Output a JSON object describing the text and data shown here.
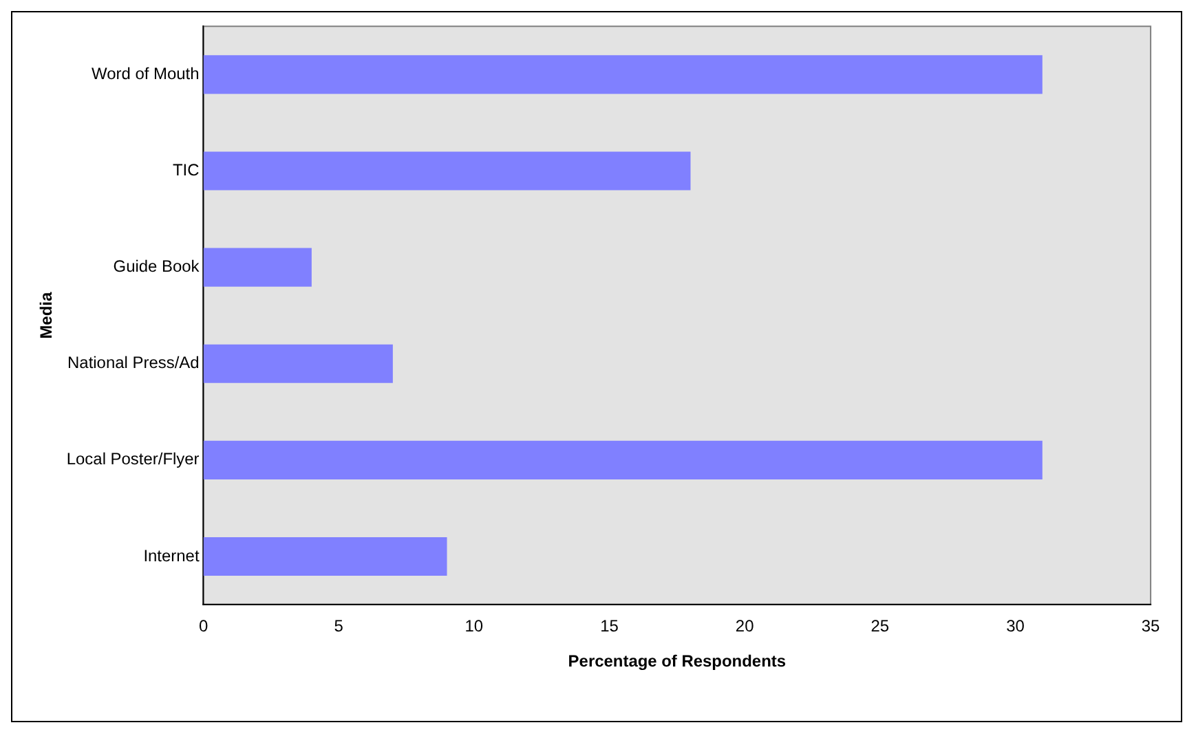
{
  "chart_data": {
    "type": "bar",
    "orientation": "horizontal",
    "xlabel": "Percentage of Respondents",
    "ylabel": "Media",
    "categories": [
      "Word of Mouth",
      "TIC",
      "Guide Book",
      "National Press/Ad",
      "Local Poster/Flyer",
      "Internet"
    ],
    "values": [
      31,
      18,
      4,
      7,
      31,
      9
    ],
    "color": "#8080ff",
    "xlim": [
      0,
      35
    ],
    "xticks": [
      0,
      5,
      10,
      15,
      20,
      25,
      30,
      35
    ],
    "grid": false,
    "legend": false
  }
}
